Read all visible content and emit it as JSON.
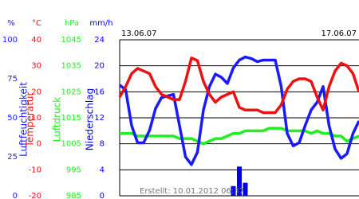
{
  "chart_data": {
    "type": "line",
    "categories": [
      "13.06.07",
      null,
      null,
      null,
      null,
      null,
      null,
      null,
      null,
      null,
      null,
      null,
      null,
      null,
      null,
      null,
      null,
      null,
      null,
      null,
      null,
      null,
      null,
      null,
      null,
      null,
      null,
      null,
      null,
      null,
      null,
      null,
      null,
      null,
      null,
      null,
      null,
      null,
      null,
      null,
      "17.06.07"
    ],
    "annotation": "Erstellt: 10.01.2012 06:37",
    "grid": true,
    "series": [
      {
        "name": "Luftfeuchtigkeit",
        "unit": "%",
        "color": "#1a1aff",
        "style": "line",
        "ylim": [
          0,
          100
        ],
        "yticks": [
          0,
          25,
          50,
          75,
          100
        ],
        "values": [
          71,
          68,
          45,
          34,
          34,
          42,
          56,
          63,
          64,
          65,
          45,
          25,
          20,
          28,
          55,
          70,
          78,
          76,
          72,
          82,
          87,
          89,
          88,
          86,
          87,
          87,
          87,
          70,
          40,
          32,
          34,
          45,
          55,
          60,
          70,
          45,
          30,
          24,
          27,
          40,
          48
        ]
      },
      {
        "name": "Temperatur",
        "unit": "°C",
        "color": "#ee1111",
        "style": "line",
        "ylim": [
          -20,
          40
        ],
        "yticks": [
          -20,
          -10,
          0,
          10,
          20,
          30,
          40
        ],
        "values": [
          18,
          22,
          27,
          29,
          28,
          27,
          22,
          19,
          18,
          17,
          17,
          24,
          33,
          32,
          24,
          19,
          16,
          18,
          19,
          20,
          14,
          13,
          13,
          13,
          12,
          12,
          12,
          15,
          21,
          24,
          25,
          25,
          24,
          18,
          13,
          22,
          28,
          31,
          30,
          27,
          20
        ]
      },
      {
        "name": "Luftdruck",
        "unit": "hPa",
        "color": "#22ee22",
        "style": "line",
        "ylim": [
          985,
          1045
        ],
        "yticks": [
          985,
          995,
          1005,
          1015,
          1025,
          1035,
          1045
        ],
        "values": [
          1009,
          1009,
          1009,
          1008,
          1008,
          1008,
          1008,
          1008,
          1008,
          1008,
          1007,
          1007,
          1007,
          1006,
          1005,
          1006,
          1007,
          1007,
          1008,
          1009,
          1009,
          1010,
          1010,
          1010,
          1010,
          1011,
          1011,
          1011,
          1010,
          1010,
          1010,
          1010,
          1009,
          1010,
          1009,
          1009,
          1008,
          1008,
          1006,
          1007,
          1008
        ]
      },
      {
        "name": "Niederschlag",
        "unit": "mm/h",
        "color": "#0000ee",
        "style": "bar",
        "ylim": [
          0,
          24
        ],
        "yticks": [
          0,
          4,
          8,
          12,
          16,
          20,
          24
        ],
        "values": [
          0,
          0,
          0,
          0,
          0,
          0,
          0,
          0,
          0,
          0,
          0,
          0,
          0,
          0,
          0,
          0,
          0,
          0,
          0,
          1.5,
          4.5,
          2,
          0,
          0,
          0,
          0,
          0,
          0,
          0,
          0,
          0,
          0,
          0,
          0,
          0,
          0,
          0,
          0,
          0,
          0,
          0
        ]
      }
    ]
  }
}
